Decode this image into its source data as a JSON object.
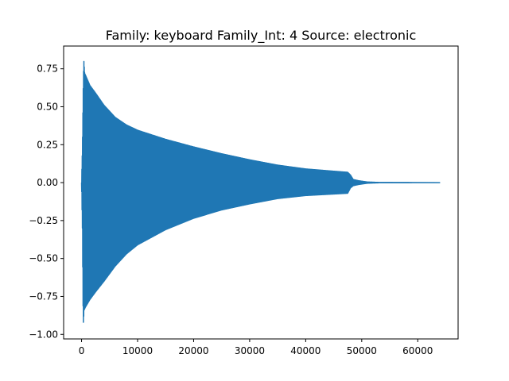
{
  "chart_data": {
    "type": "line",
    "title": "Family: keyboard Family_Int: 4 Source: electronic",
    "xlabel": "",
    "ylabel": "",
    "xlim": [
      -3200,
      67200
    ],
    "ylim": [
      -1.03,
      0.9
    ],
    "grid": false,
    "legend": "none",
    "x_ticks": [
      {
        "value": 0,
        "label": "0"
      },
      {
        "value": 10000,
        "label": "10000"
      },
      {
        "value": 20000,
        "label": "20000"
      },
      {
        "value": 30000,
        "label": "30000"
      },
      {
        "value": 40000,
        "label": "40000"
      },
      {
        "value": 50000,
        "label": "50000"
      },
      {
        "value": 60000,
        "label": "60000"
      }
    ],
    "y_ticks": [
      {
        "value": 0.75,
        "label": "0.75"
      },
      {
        "value": 0.5,
        "label": "0.50"
      },
      {
        "value": 0.25,
        "label": "0.25"
      },
      {
        "value": 0.0,
        "label": "0.00"
      },
      {
        "value": -0.25,
        "label": "−0.25"
      },
      {
        "value": -0.5,
        "label": "−0.50"
      },
      {
        "value": -0.75,
        "label": "−0.75"
      },
      {
        "value": -1.0,
        "label": "−1.00"
      }
    ],
    "series": [
      {
        "color": "#1f77b4",
        "n_samples": 64000,
        "envelope_upper": [
          [
            0,
            0.0
          ],
          [
            150,
            0.22
          ],
          [
            300,
            0.62
          ],
          [
            400,
            0.81
          ],
          [
            550,
            0.72
          ],
          [
            800,
            0.7
          ],
          [
            1500,
            0.64
          ],
          [
            2500,
            0.59
          ],
          [
            4000,
            0.51
          ],
          [
            6000,
            0.43
          ],
          [
            8000,
            0.38
          ],
          [
            10000,
            0.345
          ],
          [
            15000,
            0.285
          ],
          [
            20000,
            0.235
          ],
          [
            25000,
            0.19
          ],
          [
            30000,
            0.15
          ],
          [
            35000,
            0.115
          ],
          [
            40000,
            0.09
          ],
          [
            45000,
            0.075
          ],
          [
            47500,
            0.068
          ],
          [
            48000,
            0.05
          ],
          [
            48500,
            0.02
          ],
          [
            49500,
            0.012
          ],
          [
            51000,
            0.004
          ],
          [
            53000,
            0.001
          ],
          [
            64000,
            0.0
          ]
        ],
        "envelope_lower": [
          [
            0,
            0.0
          ],
          [
            150,
            -0.3
          ],
          [
            300,
            -0.94
          ],
          [
            450,
            -0.84
          ],
          [
            700,
            -0.82
          ],
          [
            1500,
            -0.77
          ],
          [
            2500,
            -0.72
          ],
          [
            4000,
            -0.65
          ],
          [
            6000,
            -0.55
          ],
          [
            8000,
            -0.47
          ],
          [
            10000,
            -0.41
          ],
          [
            15000,
            -0.31
          ],
          [
            20000,
            -0.235
          ],
          [
            25000,
            -0.18
          ],
          [
            30000,
            -0.14
          ],
          [
            35000,
            -0.105
          ],
          [
            40000,
            -0.085
          ],
          [
            45000,
            -0.075
          ],
          [
            47500,
            -0.07
          ],
          [
            48000,
            -0.035
          ],
          [
            48500,
            -0.02
          ],
          [
            49500,
            -0.012
          ],
          [
            51000,
            -0.004
          ],
          [
            53000,
            -0.001
          ],
          [
            64000,
            0.0
          ]
        ]
      }
    ]
  }
}
